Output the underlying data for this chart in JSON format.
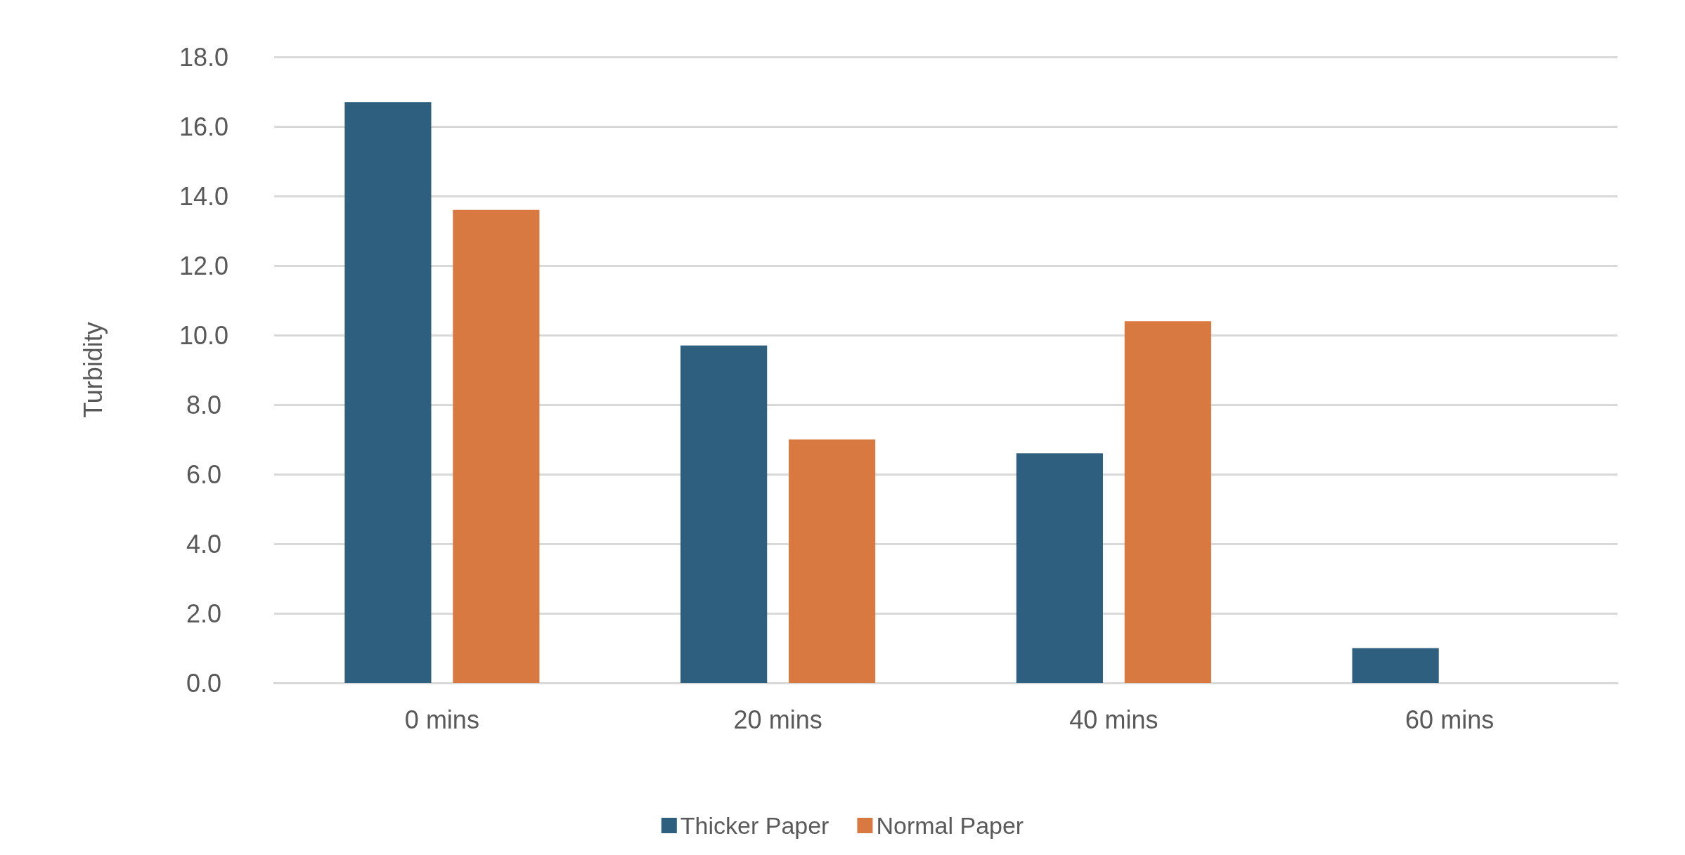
{
  "chart_data": {
    "type": "bar",
    "ylabel": "Turbidity",
    "categories": [
      "0 mins",
      "20 mins",
      "40 mins",
      "60 mins"
    ],
    "series": [
      {
        "name": "Thicker Paper",
        "color": "#2e5f7f",
        "values": [
          16.7,
          9.7,
          6.6,
          1.0
        ]
      },
      {
        "name": "Normal Paper",
        "color": "#d87941",
        "values": [
          13.6,
          7.0,
          10.4,
          0
        ]
      }
    ],
    "ylim": [
      0,
      18
    ],
    "yticks": [
      {
        "value": 0,
        "label": "0.0"
      },
      {
        "value": 2,
        "label": "2.0"
      },
      {
        "value": 4,
        "label": "4.0"
      },
      {
        "value": 6,
        "label": "6.0"
      },
      {
        "value": 8,
        "label": "8.0"
      },
      {
        "value": 10,
        "label": "10.0"
      },
      {
        "value": 12,
        "label": "12.0"
      },
      {
        "value": 14,
        "label": "14.0"
      },
      {
        "value": 16,
        "label": "16.0"
      },
      {
        "value": 18,
        "label": "18.0"
      }
    ],
    "grid": "y",
    "legend": "bottom"
  }
}
